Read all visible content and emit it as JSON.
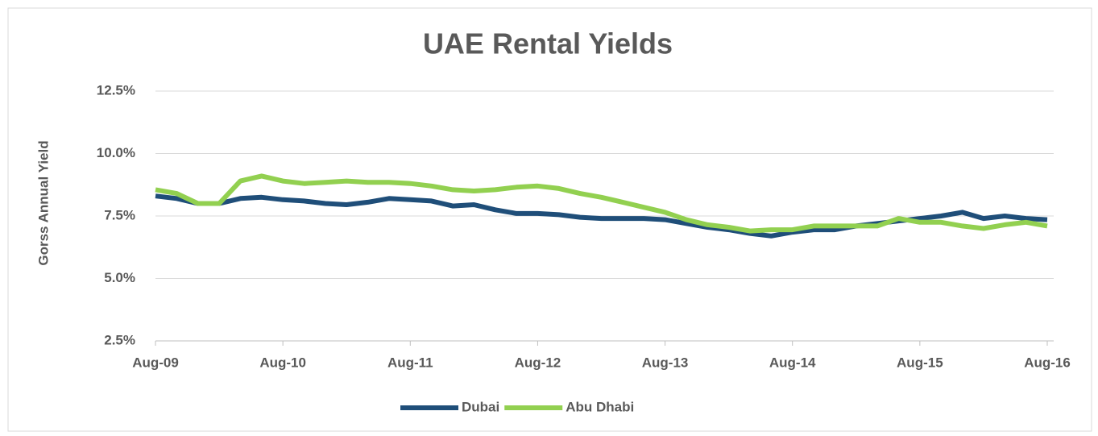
{
  "chart_data": {
    "type": "line",
    "title": "UAE Rental Yields",
    "y_label": "Gorss Annual Yield",
    "categories": [
      "Aug-09",
      null,
      null,
      null,
      null,
      null,
      "Aug-10",
      null,
      null,
      null,
      null,
      null,
      "Aug-11",
      null,
      null,
      null,
      null,
      null,
      "Aug-12",
      null,
      null,
      null,
      null,
      null,
      "Aug-13",
      null,
      null,
      null,
      null,
      null,
      "Aug-14",
      null,
      null,
      null,
      null,
      null,
      "Aug-15",
      null,
      null,
      null,
      null,
      null,
      "Aug-16"
    ],
    "series": [
      {
        "name": "Dubai",
        "color": "#1f4e79",
        "values": [
          8.3,
          8.2,
          8.0,
          8.0,
          8.2,
          8.25,
          8.15,
          8.1,
          8.0,
          7.95,
          8.05,
          8.2,
          8.15,
          8.1,
          7.9,
          7.95,
          7.75,
          7.6,
          7.6,
          7.55,
          7.45,
          7.4,
          7.4,
          7.4,
          7.35,
          7.2,
          7.05,
          6.95,
          6.8,
          6.7,
          6.85,
          6.95,
          6.95,
          7.1,
          7.2,
          7.3,
          7.4,
          7.5,
          7.65,
          7.4,
          7.5,
          7.4,
          7.35
        ]
      },
      {
        "name": "Abu Dhabi",
        "color": "#92d050",
        "values": [
          8.55,
          8.4,
          8.0,
          8.0,
          8.9,
          9.1,
          8.9,
          8.8,
          8.85,
          8.9,
          8.85,
          8.85,
          8.8,
          8.7,
          8.55,
          8.5,
          8.55,
          8.65,
          8.7,
          8.6,
          8.4,
          8.25,
          8.05,
          7.85,
          7.65,
          7.35,
          7.15,
          7.05,
          6.9,
          6.95,
          6.95,
          7.1,
          7.1,
          7.1,
          7.1,
          7.4,
          7.25,
          7.25,
          7.1,
          7.0,
          7.15,
          7.25,
          7.1
        ]
      }
    ],
    "ylim": [
      2.5,
      12.5
    ],
    "yticks": [
      {
        "value": 2.5,
        "label": "2.5%"
      },
      {
        "value": 5.0,
        "label": "5.0%"
      },
      {
        "value": 7.5,
        "label": "7.5%"
      },
      {
        "value": 10.0,
        "label": "10.0%"
      },
      {
        "value": 12.5,
        "label": "12.5%"
      }
    ],
    "grid": true,
    "legend": "bottom"
  }
}
